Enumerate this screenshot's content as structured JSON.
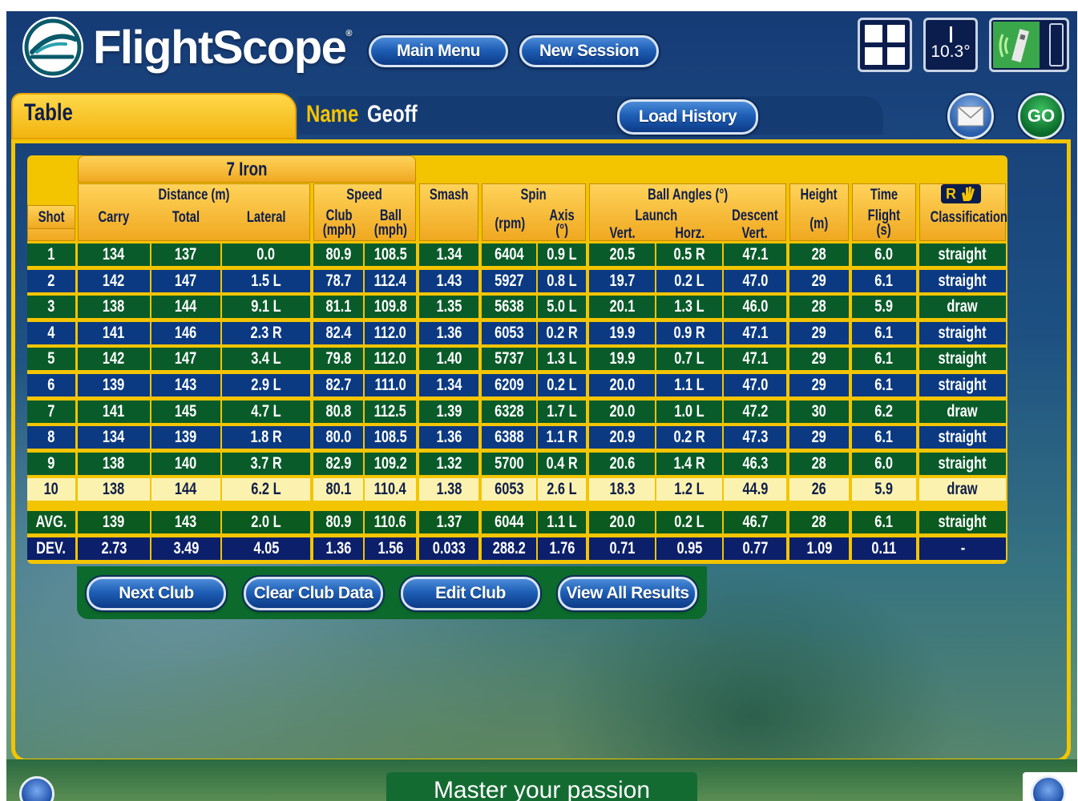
{
  "header": {
    "logo_text": "FlightScope",
    "logo_reg": "®",
    "main_menu_label": "Main Menu",
    "new_session_label": "New Session",
    "angle_value": "10.3°"
  },
  "tabbar": {
    "tab_label": "Table",
    "name_label": "Name",
    "name_value": "Geoff",
    "load_history_label": "Load History",
    "go_label": "GO"
  },
  "table": {
    "club": "7 Iron",
    "headers": {
      "shot": "Shot",
      "distance": "Distance (m)",
      "carry": "Carry",
      "total": "Total",
      "lateral": "Lateral",
      "speed": "Speed",
      "club": "Club",
      "club_unit": "(mph)",
      "ball": "Ball",
      "ball_unit": "(mph)",
      "smash": "Smash",
      "spin": "Spin",
      "rpm": "(rpm)",
      "axis": "Axis",
      "axis_unit": "(°)",
      "ball_angles": "Ball Angles (°)",
      "launch": "Launch",
      "vert": "Vert.",
      "horz": "Horz.",
      "descent": "Descent",
      "descent_vert": "Vert.",
      "height": "Height",
      "height_unit": "(m)",
      "time": "Time",
      "flight": "Flight",
      "flight_unit": "(s)",
      "rh": "R",
      "classification": "Classification"
    },
    "rows": [
      [
        "1",
        "134",
        "137",
        "0.0",
        "80.9",
        "108.5",
        "1.34",
        "6404",
        "0.9 L",
        "20.5",
        "0.5 R",
        "47.1",
        "28",
        "6.0",
        "straight"
      ],
      [
        "2",
        "142",
        "147",
        "1.5 L",
        "78.7",
        "112.4",
        "1.43",
        "5927",
        "0.8 L",
        "19.7",
        "0.2 L",
        "47.0",
        "29",
        "6.1",
        "straight"
      ],
      [
        "3",
        "138",
        "144",
        "9.1 L",
        "81.1",
        "109.8",
        "1.35",
        "5638",
        "5.0 L",
        "20.1",
        "1.3 L",
        "46.0",
        "28",
        "5.9",
        "draw"
      ],
      [
        "4",
        "141",
        "146",
        "2.3 R",
        "82.4",
        "112.0",
        "1.36",
        "6053",
        "0.2 R",
        "19.9",
        "0.9 R",
        "47.1",
        "29",
        "6.1",
        "straight"
      ],
      [
        "5",
        "142",
        "147",
        "3.4 L",
        "79.8",
        "112.0",
        "1.40",
        "5737",
        "1.3 L",
        "19.9",
        "0.7 L",
        "47.1",
        "29",
        "6.1",
        "straight"
      ],
      [
        "6",
        "139",
        "143",
        "2.9 L",
        "82.7",
        "111.0",
        "1.34",
        "6209",
        "0.2 L",
        "20.0",
        "1.1 L",
        "47.0",
        "29",
        "6.1",
        "straight"
      ],
      [
        "7",
        "141",
        "145",
        "4.7 L",
        "80.8",
        "112.5",
        "1.39",
        "6328",
        "1.7 L",
        "20.0",
        "1.0 L",
        "47.2",
        "30",
        "6.2",
        "draw"
      ],
      [
        "8",
        "134",
        "139",
        "1.8 R",
        "80.0",
        "108.5",
        "1.36",
        "6388",
        "1.1 R",
        "20.9",
        "0.2 R",
        "47.3",
        "29",
        "6.1",
        "straight"
      ],
      [
        "9",
        "138",
        "140",
        "3.7 R",
        "82.9",
        "109.2",
        "1.32",
        "5700",
        "0.4 R",
        "20.6",
        "1.4 R",
        "46.3",
        "28",
        "6.0",
        "straight"
      ],
      [
        "10",
        "138",
        "144",
        "6.2 L",
        "80.1",
        "110.4",
        "1.38",
        "6053",
        "2.6 L",
        "18.3",
        "1.2 L",
        "44.9",
        "26",
        "5.9",
        "draw"
      ]
    ],
    "avg": [
      "AVG.",
      "139",
      "143",
      "2.0 L",
      "80.9",
      "110.6",
      "1.37",
      "6044",
      "1.1 L",
      "20.0",
      "0.2 L",
      "46.7",
      "28",
      "6.1",
      "straight"
    ],
    "dev": [
      "DEV.",
      "2.73",
      "3.49",
      "4.05",
      "1.36",
      "1.56",
      "0.033",
      "288.2",
      "1.76",
      "0.71",
      "0.95",
      "0.77",
      "1.09",
      "0.11",
      "-"
    ]
  },
  "buttons": {
    "next_club": "Next Club",
    "clear_club_data": "Clear Club Data",
    "edit_club": "Edit Club",
    "view_all_results": "View All Results"
  },
  "footer": {
    "tagline": "Master your passion"
  },
  "colors": {
    "accent_yellow": "#f3c400",
    "row_blue": "#0b3a82",
    "row_green": "#0a5b2a",
    "highlight_row": "#fcf2b0"
  }
}
